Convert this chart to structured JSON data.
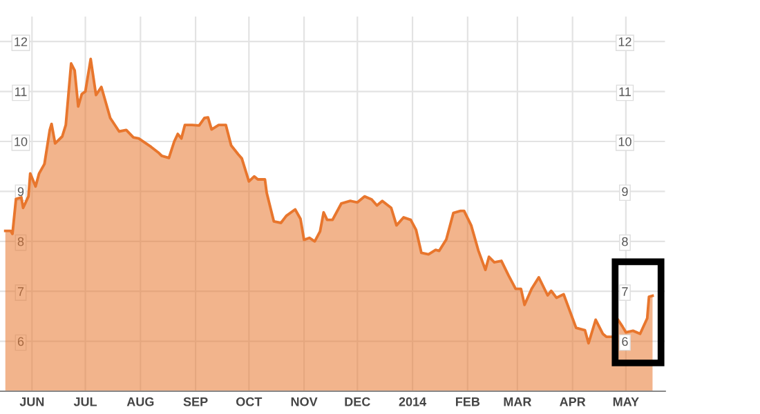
{
  "chart_data": {
    "type": "area",
    "x": [
      "2013-05-17",
      "2013-05-20",
      "2013-05-21",
      "2013-05-23",
      "2013-05-26",
      "2013-05-27",
      "2013-05-30",
      "2013-05-31",
      "2013-06-03",
      "2013-06-05",
      "2013-06-08",
      "2013-06-11",
      "2013-06-12",
      "2013-06-14",
      "2013-06-18",
      "2013-06-20",
      "2013-06-23",
      "2013-06-25",
      "2013-06-27",
      "2013-06-29",
      "2013-07-01",
      "2013-07-04",
      "2013-07-07",
      "2013-07-10",
      "2013-07-15",
      "2013-07-20",
      "2013-07-24",
      "2013-07-28",
      "2013-07-31",
      "2013-08-07",
      "2013-08-11",
      "2013-08-13",
      "2013-08-17",
      "2013-08-20",
      "2013-08-22",
      "2013-08-24",
      "2013-08-26",
      "2013-08-30",
      "2013-09-03",
      "2013-09-06",
      "2013-09-08",
      "2013-09-10",
      "2013-09-14",
      "2013-09-18",
      "2013-09-21",
      "2013-09-25",
      "2013-09-27",
      "2013-10-01",
      "2013-10-04",
      "2013-10-06",
      "2013-10-10",
      "2013-10-11",
      "2013-10-15",
      "2013-10-19",
      "2013-10-22",
      "2013-10-27",
      "2013-10-30",
      "2013-11-01",
      "2013-11-04",
      "2013-11-07",
      "2013-11-10",
      "2013-11-12",
      "2013-11-14",
      "2013-11-17",
      "2013-11-22",
      "2013-11-27",
      "2013-12-01",
      "2013-12-05",
      "2013-12-09",
      "2013-12-12",
      "2013-12-15",
      "2013-12-20",
      "2013-12-23",
      "2013-12-27",
      "2013-12-31",
      "2014-01-03",
      "2014-01-06",
      "2014-01-10",
      "2014-01-14",
      "2014-01-16",
      "2014-01-20",
      "2014-01-24",
      "2014-01-28",
      "2014-01-30",
      "2014-02-03",
      "2014-02-07",
      "2014-02-11",
      "2014-02-13",
      "2014-02-16",
      "2014-02-20",
      "2014-02-24",
      "2014-02-28",
      "2014-03-03",
      "2014-03-05",
      "2014-03-09",
      "2014-03-13",
      "2014-03-18",
      "2014-03-20",
      "2014-03-23",
      "2014-03-27",
      "2014-04-03",
      "2014-04-08",
      "2014-04-10",
      "2014-04-14",
      "2014-04-18",
      "2014-04-20",
      "2014-04-24",
      "2014-04-26",
      "2014-04-29",
      "2014-05-01",
      "2014-05-05",
      "2014-05-09",
      "2014-05-13",
      "2014-05-14",
      "2014-05-16"
    ],
    "series": [
      {
        "color": "#e8762d",
        "values": [
          8.21,
          8.21,
          8.15,
          8.85,
          8.88,
          8.67,
          8.9,
          9.36,
          9.1,
          9.36,
          9.55,
          10.23,
          10.35,
          9.96,
          10.1,
          10.33,
          11.56,
          11.42,
          10.7,
          10.95,
          11.0,
          11.65,
          10.93,
          11.09,
          10.47,
          10.2,
          10.23,
          10.08,
          10.06,
          9.89,
          9.78,
          9.71,
          9.67,
          10.0,
          10.15,
          10.06,
          10.33,
          10.33,
          10.32,
          10.47,
          10.48,
          10.24,
          10.33,
          10.33,
          9.92,
          9.74,
          9.66,
          9.2,
          9.3,
          9.24,
          9.24,
          8.97,
          8.4,
          8.37,
          8.51,
          8.64,
          8.45,
          8.03,
          8.07,
          8.0,
          8.2,
          8.58,
          8.43,
          8.43,
          8.76,
          8.81,
          8.78,
          8.9,
          8.84,
          8.72,
          8.81,
          8.67,
          8.32,
          8.48,
          8.43,
          8.23,
          7.77,
          7.74,
          7.83,
          7.81,
          8.04,
          8.57,
          8.61,
          8.61,
          8.32,
          7.82,
          7.43,
          7.69,
          7.58,
          7.61,
          7.32,
          7.05,
          7.05,
          6.73,
          7.05,
          7.28,
          6.92,
          7.01,
          6.87,
          6.94,
          6.27,
          6.22,
          5.96,
          6.43,
          6.15,
          6.09,
          6.09,
          6.46,
          6.3,
          6.18,
          6.21,
          6.15,
          6.46,
          6.89,
          6.91
        ]
      }
    ],
    "xlim": [
      "2013-05-14",
      "2014-05-23"
    ],
    "xticks": [
      {
        "value": "2013-06-01",
        "label": "JUN"
      },
      {
        "value": "2013-07-01",
        "label": "JUL"
      },
      {
        "value": "2013-08-01",
        "label": "AUG"
      },
      {
        "value": "2013-09-01",
        "label": "SEP"
      },
      {
        "value": "2013-10-01",
        "label": "OCT"
      },
      {
        "value": "2013-11-01",
        "label": "NOV"
      },
      {
        "value": "2013-12-01",
        "label": "DEC"
      },
      {
        "value": "2014-01-01",
        "label": "2014"
      },
      {
        "value": "2014-02-01",
        "label": "FEB"
      },
      {
        "value": "2014-03-01",
        "label": "MAR"
      },
      {
        "value": "2014-04-01",
        "label": "APR"
      },
      {
        "value": "2014-05-01",
        "label": "MAY"
      }
    ],
    "ylim": [
      5,
      12.5
    ],
    "yticks": [
      6,
      7,
      8,
      9,
      10,
      11,
      12
    ],
    "y2lim": [
      5,
      12.5
    ],
    "y2ticks": [
      6,
      7,
      8,
      9,
      10,
      11,
      12
    ],
    "grid": true,
    "legend": false
  }
}
